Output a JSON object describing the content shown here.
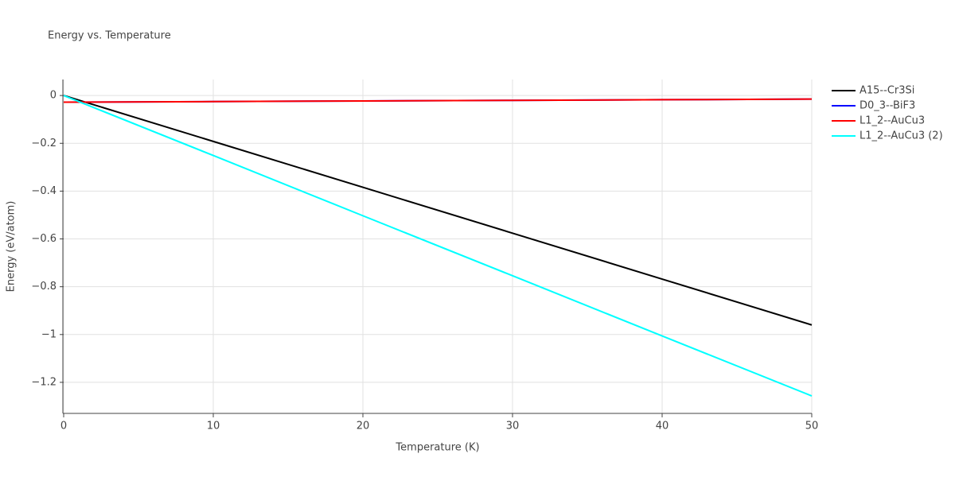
{
  "chart_data": {
    "type": "line",
    "title": "Energy vs. Temperature",
    "x_label": "Temperature (K)",
    "y_label": "Energy (eV/atom)",
    "x": [
      0,
      10,
      20,
      30,
      40,
      50
    ],
    "series": [
      {
        "name": "A15--Cr3Si",
        "color": "#000000",
        "values": [
          0,
          -0.192,
          -0.384,
          -0.576,
          -0.768,
          -0.96
        ]
      },
      {
        "name": "D0_3--BiF3",
        "color": "#0000ff",
        "values": [
          -0.028,
          -0.0254,
          -0.0228,
          -0.0202,
          -0.0176,
          -0.015
        ]
      },
      {
        "name": "L1_2--AuCu3",
        "color": "#ff0000",
        "values": [
          -0.028,
          -0.0254,
          -0.0228,
          -0.0202,
          -0.0176,
          -0.015
        ]
      },
      {
        "name": "L1_2--AuCu3 (2)",
        "color": "#00ffff",
        "values": [
          0,
          -0.251,
          -0.503,
          -0.754,
          -1.006,
          -1.257
        ]
      }
    ],
    "xlim": [
      0,
      50
    ],
    "xticks": [
      0,
      10,
      20,
      30,
      40,
      50
    ],
    "ylim": [
      -1.33,
      0.067
    ],
    "yticks": [
      0,
      {
        "value": -0.2,
        "label": "−0.2"
      },
      {
        "value": -0.4,
        "label": "−0.4"
      },
      {
        "value": -0.6,
        "label": "−0.6"
      },
      {
        "value": -0.8,
        "label": "−0.8"
      },
      {
        "value": -1,
        "label": "−1"
      },
      {
        "value": -1.2,
        "label": "−1.2"
      }
    ],
    "grid": true,
    "legend": "right"
  }
}
